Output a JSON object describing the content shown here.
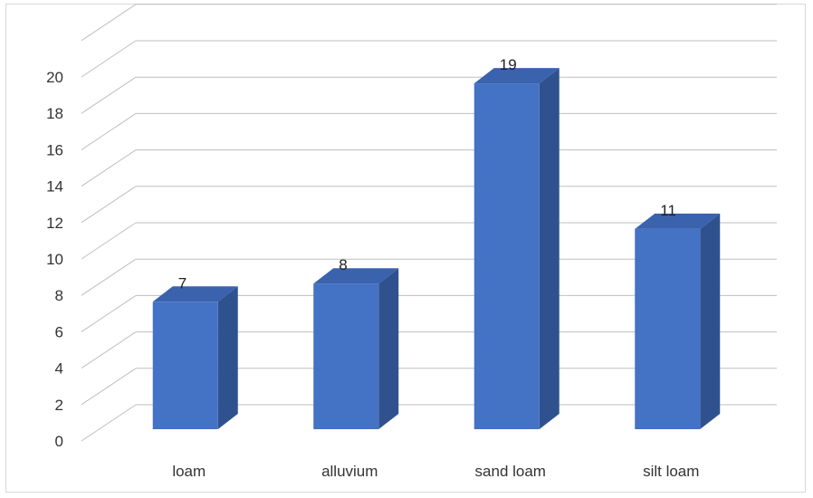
{
  "chart_data": {
    "type": "bar",
    "style": "3d-column",
    "categories": [
      "loam",
      "alluvium",
      "sand loam",
      "silt loam"
    ],
    "values": [
      7,
      8,
      19,
      11
    ],
    "data_labels": [
      "7",
      "8",
      "19",
      "11"
    ],
    "yticks": [
      "0",
      "2",
      "4",
      "6",
      "8",
      "10",
      "12",
      "14",
      "16",
      "18",
      "20"
    ],
    "ylim": [
      0,
      22
    ],
    "grid": true,
    "legend": "none",
    "colors": {
      "bar_front": "#4472c4",
      "bar_side": "#2f528f",
      "bar_top": "#3a62ad",
      "grid": "#bfbfbf"
    }
  }
}
